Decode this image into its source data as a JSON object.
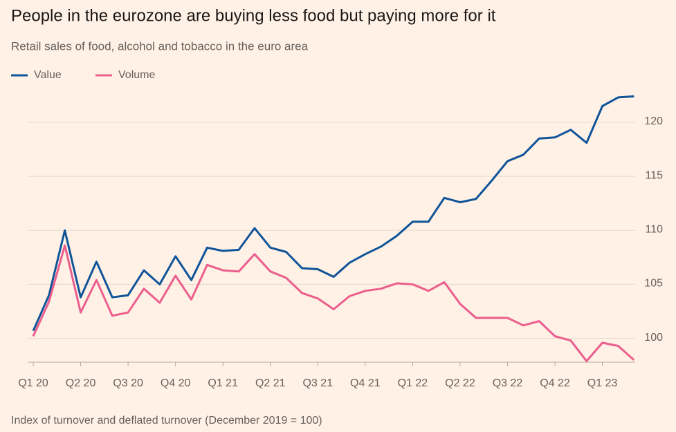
{
  "chart_data": {
    "type": "line",
    "title": "People in the eurozone are buying less food but paying more for it",
    "subtitle": "Retail sales of food, alcohol and tobacco in the euro area",
    "source": "Index of turnover and deflated turnover (December 2019 = 100)",
    "categories": [
      "Q1 20",
      null,
      null,
      "Q2 20",
      null,
      null,
      "Q3 20",
      null,
      null,
      "Q4 20",
      null,
      null,
      "Q1 21",
      null,
      null,
      "Q2 21",
      null,
      null,
      "Q3 21",
      null,
      null,
      "Q4 21",
      null,
      null,
      "Q1 22",
      null,
      null,
      "Q2 22",
      null,
      null,
      "Q3 22",
      null,
      null,
      "Q4 22",
      null,
      null,
      "Q1 23",
      null,
      null
    ],
    "series": [
      {
        "name": "Value",
        "color": "#0f5499",
        "values": [
          100.7,
          104.0,
          110.0,
          103.8,
          107.1,
          103.8,
          104.0,
          106.3,
          105.0,
          107.6,
          105.4,
          108.4,
          108.1,
          108.2,
          110.2,
          108.4,
          108.0,
          106.5,
          106.4,
          105.7,
          107.0,
          107.8,
          108.5,
          109.5,
          110.8,
          110.8,
          113.0,
          112.6,
          112.9,
          114.6,
          116.4,
          117.0,
          118.5,
          118.6,
          119.3,
          118.1,
          121.5,
          122.3,
          122.4
        ]
      },
      {
        "name": "Volume",
        "color": "#eb5e8d",
        "values": [
          100.2,
          103.4,
          108.6,
          102.4,
          105.4,
          102.1,
          102.4,
          104.6,
          103.3,
          105.8,
          103.6,
          106.8,
          106.3,
          106.2,
          107.8,
          106.2,
          105.6,
          104.2,
          103.7,
          102.7,
          103.9,
          104.4,
          104.6,
          105.1,
          105.0,
          104.4,
          105.2,
          103.2,
          101.9,
          101.9,
          101.9,
          101.2,
          101.6,
          100.2,
          99.8,
          97.9,
          99.6,
          99.3,
          98.0
        ]
      }
    ],
    "ylim": [
      97.8,
      123
    ],
    "yticks": [
      100,
      105,
      110,
      115,
      120
    ],
    "grid": true,
    "legend": "top-left"
  }
}
